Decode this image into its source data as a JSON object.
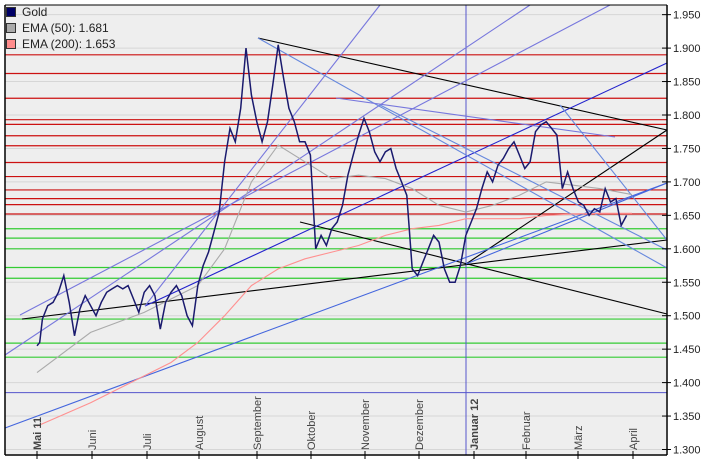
{
  "chart_data": {
    "type": "line",
    "title": "",
    "xlabel": "",
    "ylabel": "",
    "ylim": [
      1.3,
      1.95
    ],
    "grid": true,
    "legend_position": "top-left",
    "y_ticks": [
      "1.950",
      "1.900",
      "1.850",
      "1.800",
      "1.750",
      "1.700",
      "1.650",
      "1.600",
      "1.550",
      "1.500",
      "1.450",
      "1.400",
      "1.350",
      "1.300"
    ],
    "x_ticks": [
      {
        "label": "Mai 11",
        "bold": true
      },
      {
        "label": "Juni",
        "bold": false
      },
      {
        "label": "Juli",
        "bold": false
      },
      {
        "label": "August",
        "bold": false
      },
      {
        "label": "September",
        "bold": false
      },
      {
        "label": "Oktober",
        "bold": false
      },
      {
        "label": "November",
        "bold": false
      },
      {
        "label": "Dezember",
        "bold": false
      },
      {
        "label": "Januar 12",
        "bold": true
      },
      {
        "label": "Februar",
        "bold": false
      },
      {
        "label": "März",
        "bold": false
      },
      {
        "label": "April",
        "bold": false
      }
    ],
    "legend": [
      {
        "label": "Gold",
        "color": "#000066"
      },
      {
        "label": "EMA (50): 1.681",
        "color": "#aaaaaa"
      },
      {
        "label": "EMA (200): 1.653",
        "color": "#ff8c8c"
      }
    ],
    "series": [
      {
        "name": "Gold",
        "color": "#1a1a6e",
        "x_months": [
          0,
          0.05,
          0.1,
          0.2,
          0.3,
          0.4,
          0.5,
          0.6,
          0.7,
          0.8,
          0.9,
          1.0,
          1.1,
          1.2,
          1.3,
          1.4,
          1.5,
          1.6,
          1.7,
          1.8,
          1.9,
          2.0,
          2.1,
          2.2,
          2.3,
          2.4,
          2.5,
          2.6,
          2.7,
          2.8,
          2.9,
          3.0,
          3.1,
          3.2,
          3.3,
          3.4,
          3.5,
          3.6,
          3.7,
          3.8,
          3.9,
          4.0,
          4.1,
          4.2,
          4.3,
          4.4,
          4.5,
          4.6,
          4.7,
          4.8,
          4.9,
          5.0,
          5.1,
          5.2,
          5.3,
          5.4,
          5.5,
          5.6,
          5.7,
          5.8,
          5.9,
          6.0,
          6.1,
          6.2,
          6.3,
          6.4,
          6.5,
          6.6,
          6.7,
          6.8,
          6.9,
          7.0,
          7.1,
          7.2,
          7.3,
          7.4,
          7.5,
          7.6,
          7.7,
          7.8,
          7.9,
          8.0,
          8.1,
          8.2,
          8.3,
          8.4,
          8.5,
          8.6,
          8.7,
          8.8,
          8.9,
          9.0,
          9.1,
          9.2,
          9.3,
          9.4,
          9.5,
          9.6,
          9.7,
          9.8,
          9.9,
          10.0,
          10.1,
          10.2,
          10.3,
          10.4,
          10.5,
          10.6,
          10.7,
          10.8,
          10.9,
          11.0,
          11.1
        ],
        "values": [
          1.455,
          1.46,
          1.495,
          1.515,
          1.52,
          1.535,
          1.56,
          1.52,
          1.47,
          1.51,
          1.53,
          1.515,
          1.5,
          1.52,
          1.535,
          1.54,
          1.545,
          1.54,
          1.545,
          1.525,
          1.505,
          1.535,
          1.545,
          1.53,
          1.48,
          1.52,
          1.535,
          1.545,
          1.53,
          1.5,
          1.485,
          1.545,
          1.575,
          1.595,
          1.625,
          1.655,
          1.73,
          1.78,
          1.76,
          1.81,
          1.9,
          1.83,
          1.79,
          1.76,
          1.79,
          1.845,
          1.905,
          1.855,
          1.81,
          1.79,
          1.76,
          1.76,
          1.74,
          1.6,
          1.62,
          1.605,
          1.63,
          1.64,
          1.665,
          1.71,
          1.74,
          1.77,
          1.795,
          1.775,
          1.745,
          1.73,
          1.745,
          1.75,
          1.72,
          1.7,
          1.68,
          1.57,
          1.56,
          1.58,
          1.6,
          1.62,
          1.61,
          1.57,
          1.55,
          1.55,
          1.575,
          1.62,
          1.64,
          1.66,
          1.69,
          1.715,
          1.7,
          1.725,
          1.735,
          1.75,
          1.76,
          1.74,
          1.72,
          1.73,
          1.775,
          1.785,
          1.79,
          1.78,
          1.77,
          1.69,
          1.715,
          1.69,
          1.67,
          1.665,
          1.65,
          1.66,
          1.655,
          1.69,
          1.67,
          1.675,
          1.635,
          1.65
        ]
      },
      {
        "name": "EMA (50)",
        "color": "#aaaaaa",
        "x_months": [
          0,
          1,
          2,
          2.5,
          3,
          3.5,
          4,
          4.5,
          5,
          5.5,
          6,
          6.5,
          7,
          7.5,
          8,
          8.5,
          9,
          9.5,
          10,
          10.5,
          11.1
        ],
        "values": [
          1.415,
          1.475,
          1.505,
          1.525,
          1.545,
          1.6,
          1.7,
          1.755,
          1.73,
          1.705,
          1.71,
          1.705,
          1.69,
          1.665,
          1.655,
          1.665,
          1.68,
          1.7,
          1.695,
          1.69,
          1.681
        ]
      },
      {
        "name": "EMA (200)",
        "color": "#ff9090",
        "x_months": [
          0,
          1,
          2,
          2.5,
          3,
          3.5,
          4,
          4.5,
          5,
          5.5,
          6,
          6.5,
          7,
          7.5,
          8,
          8.5,
          9,
          9.5,
          10,
          10.5,
          11.1
        ],
        "values": [
          1.335,
          1.37,
          1.41,
          1.43,
          1.46,
          1.5,
          1.545,
          1.57,
          1.585,
          1.595,
          1.605,
          1.62,
          1.63,
          1.635,
          1.645,
          1.645,
          1.645,
          1.65,
          1.652,
          1.653,
          1.653
        ]
      }
    ],
    "horizontal_lines_red": [
      1.89,
      1.862,
      1.825,
      1.793,
      1.786,
      1.769,
      1.754,
      1.729,
      1.708,
      1.688,
      1.675,
      1.666,
      1.652
    ],
    "horizontal_lines_green": [
      1.63,
      1.616,
      1.6,
      1.572,
      1.556,
      1.495,
      1.459,
      1.438
    ],
    "horizontal_line_blue": 1.385,
    "vertical_line_blue_x": "Januar 12"
  }
}
